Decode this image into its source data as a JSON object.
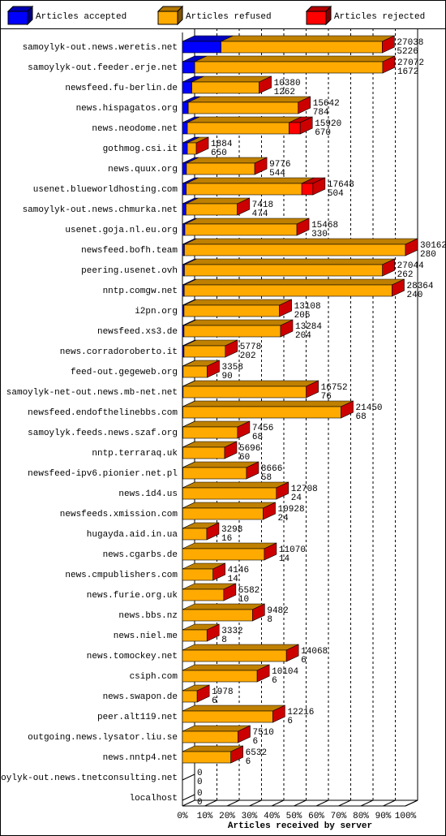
{
  "chart_data": {
    "type": "bar3d",
    "xlabel": "Articles received by server",
    "xlim": [
      0,
      100
    ],
    "xticks": [
      {
        "value": 0,
        "label": "0%"
      },
      {
        "value": 10,
        "label": "10%"
      },
      {
        "value": 20,
        "label": "20%"
      },
      {
        "value": 30,
        "label": "30%"
      },
      {
        "value": 40,
        "label": "40%"
      },
      {
        "value": 50,
        "label": "50%"
      },
      {
        "value": 60,
        "label": "60%"
      },
      {
        "value": 70,
        "label": "70%"
      },
      {
        "value": 80,
        "label": "80%"
      },
      {
        "value": 90,
        "label": "90%"
      },
      {
        "value": 100,
        "label": "100%"
      }
    ],
    "grid": true,
    "categories": [
      "samoylyk-out.news.weretis.net",
      "samoylyk-out.feeder.erje.net",
      "newsfeed.fu-berlin.de",
      "news.hispagatos.org",
      "news.neodome.net",
      "gothmog.csi.it",
      "news.quux.org",
      "usenet.blueworldhosting.com",
      "samoylyk-out.news.chmurka.net",
      "usenet.goja.nl.eu.org",
      "newsfeed.bofh.team",
      "peering.usenet.ovh",
      "nntp.comgw.net",
      "i2pn.org",
      "newsfeed.xs3.de",
      "news.corradoroberto.it",
      "feed-out.gegeweb.org",
      "samoylyk-net-out.news.mb-net.net",
      "newsfeed.endofthelinebbs.com",
      "samoylyk.feeds.news.szaf.org",
      "nntp.terraraq.uk",
      "newsfeed-ipv6.pionier.net.pl",
      "news.1d4.us",
      "newsfeeds.xmission.com",
      "hugayda.aid.in.ua",
      "news.cgarbs.de",
      "news.cmpublishers.com",
      "news.furie.org.uk",
      "news.bbs.nz",
      "news.niel.me",
      "news.tomockey.net",
      "csiph.com",
      "news.swapon.de",
      "peer.alt119.net",
      "outgoing.news.lysator.liu.se",
      "news.nntp4.net",
      "samoylyk-out.news.tnetconsulting.net",
      "localhost"
    ],
    "series": [
      {
        "name": "Articles accepted",
        "color": "#0000ff",
        "values": [
          17.3,
          5.5,
          4.2,
          2.6,
          2.2,
          2.2,
          1.8,
          1.7,
          1.6,
          1.1,
          0.9,
          0.9,
          0.8,
          0.7,
          0.7,
          0.7,
          0.3,
          0.3,
          0.2,
          0.2,
          0.2,
          0.2,
          0.1,
          0.1,
          0.1,
          0,
          0,
          0,
          0,
          0,
          0,
          0,
          0,
          0,
          0,
          0,
          0,
          0
        ]
      },
      {
        "name": "Articles refused",
        "color": "#ffaa00",
        "values": [
          72.3,
          84.3,
          30.2,
          49.3,
          45.6,
          4.0,
          30.6,
          51.8,
          23.0,
          50.2,
          99.1,
          88.8,
          93.2,
          42.8,
          43.3,
          18.5,
          10.8,
          55.2,
          70.9,
          24.5,
          18.7,
          28.5,
          42.0,
          36.1,
          10.8,
          36.7,
          13.7,
          18.5,
          31.4,
          11.0,
          46.6,
          33.5,
          6.6,
          40.5,
          24.9,
          21.7,
          0,
          0
        ]
      },
      {
        "name": "Articles rejected",
        "color": "#ff0000",
        "values": [
          0,
          0,
          0,
          0,
          5,
          0,
          0,
          5,
          0,
          0,
          0,
          0,
          0,
          0,
          0,
          0,
          0,
          0,
          0,
          0,
          0,
          0,
          0,
          0,
          0,
          0,
          0,
          0,
          0,
          0,
          0,
          0,
          0,
          0,
          0,
          0,
          0,
          0
        ]
      }
    ],
    "totals": [
      27038,
      27072,
      10380,
      15642,
      15920,
      1884,
      9776,
      17648,
      7418,
      15468,
      30162,
      27044,
      28364,
      13108,
      13284,
      5778,
      3358,
      16752,
      21450,
      7456,
      5696,
      8666,
      12708,
      10928,
      3298,
      11070,
      4146,
      5582,
      9482,
      3332,
      14068,
      10104,
      1978,
      12216,
      7510,
      6532,
      0,
      0
    ],
    "accepted": [
      5226,
      1672,
      1262,
      784,
      670,
      650,
      544,
      504,
      474,
      330,
      280,
      262,
      240,
      206,
      204,
      202,
      90,
      76,
      68,
      68,
      60,
      58,
      24,
      24,
      16,
      14,
      14,
      10,
      8,
      8,
      6,
      6,
      6,
      6,
      6,
      6,
      0,
      0
    ]
  }
}
